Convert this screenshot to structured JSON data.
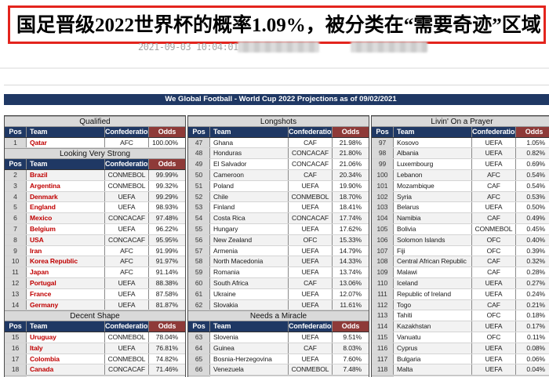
{
  "page": {
    "headline": "国足晋级2022世界杯的概率1.09%，被分类在“需要奇迹”区域",
    "timestamp": "2021-09-03 10:04:01",
    "headline_border_color": "#e3241d"
  },
  "table": {
    "title": "We Global Football - World Cup 2022 Projections as of 09/02/2021",
    "columns": [
      "Pos",
      "Team",
      "Confederation",
      "Odds"
    ],
    "colors": {
      "navy": "#1f3864",
      "dark_red": "#8e3a38",
      "group_bg": "#d9d9d9",
      "team_red": "#c00000"
    },
    "panels": [
      {
        "sections": [
          {
            "label": "Qualified",
            "rows": [
              [
                1,
                "Qatar",
                "AFC",
                "100.00%"
              ]
            ]
          },
          {
            "label": "Looking Very Strong",
            "rows": [
              [
                2,
                "Brazil",
                "CONMEBOL",
                "99.99%"
              ],
              [
                3,
                "Argentina",
                "CONMEBOL",
                "99.32%"
              ],
              [
                4,
                "Denmark",
                "UEFA",
                "99.29%"
              ],
              [
                5,
                "England",
                "UEFA",
                "98.93%"
              ],
              [
                6,
                "Mexico",
                "CONCACAF",
                "97.48%"
              ],
              [
                7,
                "Belgium",
                "UEFA",
                "96.22%"
              ],
              [
                8,
                "USA",
                "CONCACAF",
                "95.95%"
              ],
              [
                9,
                "Iran",
                "AFC",
                "91.99%"
              ],
              [
                10,
                "Korea Republic",
                "AFC",
                "91.97%"
              ],
              [
                11,
                "Japan",
                "AFC",
                "91.14%"
              ],
              [
                12,
                "Portugal",
                "UEFA",
                "88.38%"
              ],
              [
                13,
                "France",
                "UEFA",
                "87.58%"
              ],
              [
                14,
                "Germany",
                "UEFA",
                "81.87%"
              ]
            ]
          },
          {
            "label": "Decent Shape",
            "rows": [
              [
                15,
                "Uruguay",
                "CONMEBOL",
                "78.04%"
              ],
              [
                16,
                "Italy",
                "UEFA",
                "76.81%"
              ],
              [
                17,
                "Colombia",
                "CONMEBOL",
                "74.82%"
              ],
              [
                18,
                "Canada",
                "CONCACAF",
                "71.46%"
              ]
            ]
          }
        ]
      },
      {
        "sections": [
          {
            "label": "Longshots",
            "rows": [
              [
                47,
                "Ghana",
                "CAF",
                "21.98%"
              ],
              [
                48,
                "Honduras",
                "CONCACAF",
                "21.80%"
              ],
              [
                49,
                "El Salvador",
                "CONCACAF",
                "21.06%"
              ],
              [
                50,
                "Cameroon",
                "CAF",
                "20.34%"
              ],
              [
                51,
                "Poland",
                "UEFA",
                "19.90%"
              ],
              [
                52,
                "Chile",
                "CONMEBOL",
                "18.70%"
              ],
              [
                53,
                "Finland",
                "UEFA",
                "18.41%"
              ],
              [
                54,
                "Costa Rica",
                "CONCACAF",
                "17.74%"
              ],
              [
                55,
                "Hungary",
                "UEFA",
                "17.62%"
              ],
              [
                56,
                "New Zealand",
                "OFC",
                "15.33%"
              ],
              [
                57,
                "Armenia",
                "UEFA",
                "14.79%"
              ],
              [
                58,
                "North Macedonia",
                "UEFA",
                "14.33%"
              ],
              [
                59,
                "Romania",
                "UEFA",
                "13.74%"
              ],
              [
                60,
                "South Africa",
                "CAF",
                "13.06%"
              ],
              [
                61,
                "Ukraine",
                "UEFA",
                "12.07%"
              ],
              [
                62,
                "Slovakia",
                "UEFA",
                "11.61%"
              ]
            ]
          },
          {
            "label": "Needs a Miracle",
            "rows": [
              [
                63,
                "Slovenia",
                "UEFA",
                "9.51%"
              ],
              [
                64,
                "Guinea",
                "CAF",
                "8.03%"
              ],
              [
                65,
                "Bosnia-Herzegovina",
                "UEFA",
                "7.60%"
              ],
              [
                66,
                "Venezuela",
                "CONMEBOL",
                "7.48%"
              ]
            ]
          }
        ]
      },
      {
        "sections": [
          {
            "label": "Livin' On a Prayer",
            "rows": [
              [
                97,
                "Kosovo",
                "UEFA",
                "1.05%"
              ],
              [
                98,
                "Albania",
                "UEFA",
                "0.82%"
              ],
              [
                99,
                "Luxembourg",
                "UEFA",
                "0.69%"
              ],
              [
                100,
                "Lebanon",
                "AFC",
                "0.54%"
              ],
              [
                101,
                "Mozambique",
                "CAF",
                "0.54%"
              ],
              [
                102,
                "Syria",
                "AFC",
                "0.53%"
              ],
              [
                103,
                "Belarus",
                "UEFA",
                "0.50%"
              ],
              [
                104,
                "Namibia",
                "CAF",
                "0.49%"
              ],
              [
                105,
                "Bolivia",
                "CONMEBOL",
                "0.45%"
              ],
              [
                106,
                "Solomon Islands",
                "OFC",
                "0.40%"
              ],
              [
                107,
                "Fiji",
                "OFC",
                "0.39%"
              ],
              [
                108,
                "Central African Republic",
                "CAF",
                "0.32%"
              ],
              [
                109,
                "Malawi",
                "CAF",
                "0.28%"
              ],
              [
                110,
                "Iceland",
                "UEFA",
                "0.27%"
              ],
              [
                111,
                "Republic of Ireland",
                "UEFA",
                "0.24%"
              ],
              [
                112,
                "Togo",
                "CAF",
                "0.21%"
              ],
              [
                113,
                "Tahiti",
                "OFC",
                "0.18%"
              ],
              [
                114,
                "Kazakhstan",
                "UEFA",
                "0.17%"
              ],
              [
                115,
                "Vanuatu",
                "OFC",
                "0.11%"
              ],
              [
                116,
                "Cyprus",
                "UEFA",
                "0.08%"
              ],
              [
                117,
                "Bulgaria",
                "UEFA",
                "0.06%"
              ],
              [
                118,
                "Malta",
                "UEFA",
                "0.04%"
              ]
            ]
          }
        ]
      }
    ]
  }
}
